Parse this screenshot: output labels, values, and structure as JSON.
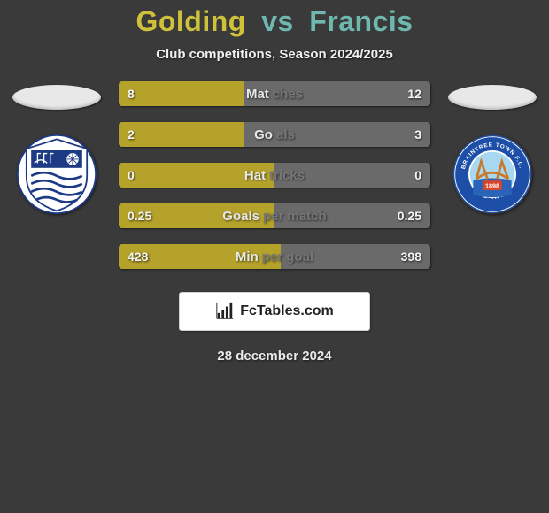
{
  "title": {
    "player1": "Golding",
    "vs": "vs",
    "player2": "Francis",
    "p1_color": "#d0c13a",
    "p2_color": "#6fb8b0"
  },
  "subtitle": "Club competitions, Season 2024/2025",
  "stats": [
    {
      "label_left": "Mat",
      "label_right": "ches",
      "left_val": "8",
      "right_val": "12",
      "left_pct": 40,
      "right_pct": 60
    },
    {
      "label_left": "Go",
      "label_right": "als",
      "left_val": "2",
      "right_val": "3",
      "left_pct": 40,
      "right_pct": 60
    },
    {
      "label_left": "Hat",
      "label_right": "tricks",
      "left_val": "0",
      "right_val": "0",
      "left_pct": 50,
      "right_pct": 50
    },
    {
      "label_left": "Goals ",
      "label_right": "per match",
      "left_val": "0.25",
      "right_val": "0.25",
      "left_pct": 50,
      "right_pct": 50
    },
    {
      "label_left": "Min ",
      "label_right": "per goal",
      "left_val": "428",
      "right_val": "398",
      "left_pct": 52,
      "right_pct": 48
    }
  ],
  "bar_colors": {
    "left": "#b5a22b",
    "right": "#6a6a6a"
  },
  "attribution": "FcTables.com",
  "date": "28 december 2024",
  "crests": {
    "left": {
      "bg": "#ffffff",
      "primary": "#1d3a85",
      "accent": "#0e1c4a"
    },
    "right": {
      "bg": "#ffffff",
      "ring": "#1d4fa8",
      "center": "#e26a1a",
      "sky": "#a7d8f0",
      "text_top": "BRAINTREE TOWN F.C.",
      "text_bottom": "THE IRON",
      "year": "1898"
    }
  }
}
